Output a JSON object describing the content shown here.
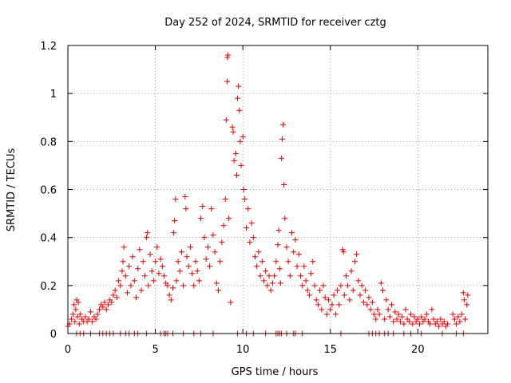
{
  "chart_data": {
    "type": "scatter",
    "title": "Day 252 of 2024, SRMTID for receiver cztg",
    "xlabel": "GPS time / hours",
    "ylabel": "SRMTID / TECUs",
    "xlim": [
      0,
      24
    ],
    "ylim": [
      0,
      1.2
    ],
    "xticks": [
      0,
      5,
      10,
      15,
      20
    ],
    "xtick_labels": [
      "0",
      "5",
      "10",
      "15",
      "20"
    ],
    "yticks": [
      0,
      0.2,
      0.4,
      0.6,
      0.8,
      1.0,
      1.2
    ],
    "ytick_labels": [
      "0",
      "0.2",
      "0.4",
      "0.6",
      "0.8",
      "1",
      "1.2"
    ],
    "grid": true,
    "marker": "+",
    "color": "#e00000",
    "series": [
      {
        "name": "SRMTID",
        "points": [
          [
            0.0,
            0.03
          ],
          [
            0.1,
            0.04
          ],
          [
            0.2,
            0.06
          ],
          [
            0.3,
            0.08
          ],
          [
            0.35,
            0.12
          ],
          [
            0.4,
            0.05
          ],
          [
            0.45,
            0.1
          ],
          [
            0.5,
            0.14
          ],
          [
            0.55,
            0.07
          ],
          [
            0.6,
            0.13
          ],
          [
            0.65,
            0.04
          ],
          [
            0.7,
            0.08
          ],
          [
            0.8,
            0.06
          ],
          [
            0.9,
            0.05
          ],
          [
            1.0,
            0.07
          ],
          [
            1.1,
            0.05
          ],
          [
            1.2,
            0.06
          ],
          [
            1.3,
            0.09
          ],
          [
            1.4,
            0.05
          ],
          [
            1.5,
            0.07
          ],
          [
            1.6,
            0.06
          ],
          [
            1.7,
            0.08
          ],
          [
            1.8,
            0.1
          ],
          [
            1.9,
            0.12
          ],
          [
            2.0,
            0.11
          ],
          [
            2.1,
            0.13
          ],
          [
            2.2,
            0.1
          ],
          [
            2.3,
            0.12
          ],
          [
            2.4,
            0.14
          ],
          [
            2.5,
            0.13
          ],
          [
            2.6,
            0.16
          ],
          [
            2.7,
            0.18
          ],
          [
            2.8,
            0.15
          ],
          [
            2.9,
            0.22
          ],
          [
            3.0,
            0.2
          ],
          [
            3.1,
            0.26
          ],
          [
            3.15,
            0.3
          ],
          [
            3.2,
            0.36
          ],
          [
            3.3,
            0.24
          ],
          [
            3.4,
            0.17
          ],
          [
            3.5,
            0.28
          ],
          [
            3.6,
            0.2
          ],
          [
            3.7,
            0.32
          ],
          [
            3.8,
            0.22
          ],
          [
            3.9,
            0.15
          ],
          [
            4.0,
            0.27
          ],
          [
            4.1,
            0.35
          ],
          [
            4.2,
            0.18
          ],
          [
            4.3,
            0.3
          ],
          [
            4.4,
            0.24
          ],
          [
            4.5,
            0.4
          ],
          [
            4.55,
            0.42
          ],
          [
            4.6,
            0.2
          ],
          [
            4.7,
            0.33
          ],
          [
            4.8,
            0.26
          ],
          [
            4.9,
            0.22
          ],
          [
            5.0,
            0.3
          ],
          [
            5.1,
            0.36
          ],
          [
            5.2,
            0.25
          ],
          [
            5.3,
            0.31
          ],
          [
            5.4,
            0.28
          ],
          [
            5.5,
            0.24
          ],
          [
            5.6,
            0.21
          ],
          [
            5.7,
            0.2
          ],
          [
            5.8,
            0.16
          ],
          [
            5.9,
            0.14
          ],
          [
            6.0,
            0.19
          ],
          [
            6.05,
            0.42
          ],
          [
            6.1,
            0.47
          ],
          [
            6.15,
            0.56
          ],
          [
            6.2,
            0.22
          ],
          [
            6.3,
            0.3
          ],
          [
            6.4,
            0.26
          ],
          [
            6.5,
            0.34
          ],
          [
            6.6,
            0.2
          ],
          [
            6.7,
            0.57
          ],
          [
            6.75,
            0.52
          ],
          [
            6.8,
            0.32
          ],
          [
            6.9,
            0.28
          ],
          [
            7.0,
            0.36
          ],
          [
            7.1,
            0.25
          ],
          [
            7.2,
            0.2
          ],
          [
            7.3,
            0.3
          ],
          [
            7.4,
            0.26
          ],
          [
            7.5,
            0.22
          ],
          [
            7.6,
            0.48
          ],
          [
            7.7,
            0.53
          ],
          [
            7.8,
            0.4
          ],
          [
            7.9,
            0.31
          ],
          [
            8.0,
            0.36
          ],
          [
            8.1,
            0.28
          ],
          [
            8.2,
            0.52
          ],
          [
            8.3,
            0.41
          ],
          [
            8.4,
            0.34
          ],
          [
            8.5,
            0.21
          ],
          [
            8.6,
            0.18
          ],
          [
            8.7,
            0.3
          ],
          [
            8.8,
            0.38
          ],
          [
            8.9,
            0.45
          ],
          [
            9.0,
            0.56
          ],
          [
            9.05,
            0.89
          ],
          [
            9.1,
            1.05
          ],
          [
            9.12,
            1.15
          ],
          [
            9.15,
            1.16
          ],
          [
            9.2,
            0.48
          ],
          [
            9.3,
            0.13
          ],
          [
            9.4,
            0.86
          ],
          [
            9.45,
            0.84
          ],
          [
            9.5,
            0.72
          ],
          [
            9.6,
            0.75
          ],
          [
            9.65,
            0.66
          ],
          [
            9.7,
            0.98
          ],
          [
            9.75,
            1.03
          ],
          [
            9.8,
            0.93
          ],
          [
            9.85,
            0.8
          ],
          [
            9.9,
            0.7
          ],
          [
            10.0,
            0.82
          ],
          [
            10.05,
            0.6
          ],
          [
            10.1,
            0.56
          ],
          [
            10.2,
            0.44
          ],
          [
            10.3,
            0.52
          ],
          [
            10.4,
            0.38
          ],
          [
            10.5,
            0.46
          ],
          [
            10.6,
            0.4
          ],
          [
            10.7,
            0.32
          ],
          [
            10.8,
            0.28
          ],
          [
            10.9,
            0.34
          ],
          [
            11.0,
            0.24
          ],
          [
            11.1,
            0.3
          ],
          [
            11.2,
            0.22
          ],
          [
            11.3,
            0.26
          ],
          [
            11.4,
            0.2
          ],
          [
            11.5,
            0.24
          ],
          [
            11.6,
            0.18
          ],
          [
            11.7,
            0.21
          ],
          [
            11.8,
            0.24
          ],
          [
            11.9,
            0.3
          ],
          [
            12.0,
            0.37
          ],
          [
            12.05,
            0.43
          ],
          [
            12.1,
            0.27
          ],
          [
            12.15,
            0.21
          ],
          [
            12.2,
            0.73
          ],
          [
            12.25,
            0.81
          ],
          [
            12.3,
            0.87
          ],
          [
            12.35,
            0.62
          ],
          [
            12.4,
            0.48
          ],
          [
            12.5,
            0.36
          ],
          [
            12.6,
            0.3
          ],
          [
            12.7,
            0.24
          ],
          [
            12.8,
            0.42
          ],
          [
            12.9,
            0.34
          ],
          [
            13.0,
            0.39
          ],
          [
            13.1,
            0.28
          ],
          [
            13.2,
            0.33
          ],
          [
            13.3,
            0.24
          ],
          [
            13.4,
            0.2
          ],
          [
            13.5,
            0.28
          ],
          [
            13.6,
            0.22
          ],
          [
            13.7,
            0.18
          ],
          [
            13.8,
            0.16
          ],
          [
            13.9,
            0.25
          ],
          [
            14.0,
            0.3
          ],
          [
            14.1,
            0.2
          ],
          [
            14.2,
            0.14
          ],
          [
            14.3,
            0.12
          ],
          [
            14.4,
            0.18
          ],
          [
            14.5,
            0.1
          ],
          [
            14.6,
            0.2
          ],
          [
            14.7,
            0.15
          ],
          [
            14.8,
            0.08
          ],
          [
            14.9,
            0.14
          ],
          [
            15.0,
            0.1
          ],
          [
            15.1,
            0.12
          ],
          [
            15.2,
            0.16
          ],
          [
            15.3,
            0.08
          ],
          [
            15.4,
            0.18
          ],
          [
            15.5,
            0.12
          ],
          [
            15.6,
            0.2
          ],
          [
            15.7,
            0.35
          ],
          [
            15.75,
            0.34
          ],
          [
            15.8,
            0.16
          ],
          [
            15.9,
            0.24
          ],
          [
            16.0,
            0.2
          ],
          [
            16.1,
            0.14
          ],
          [
            16.2,
            0.26
          ],
          [
            16.3,
            0.18
          ],
          [
            16.4,
            0.3
          ],
          [
            16.5,
            0.33
          ],
          [
            16.6,
            0.22
          ],
          [
            16.7,
            0.16
          ],
          [
            16.8,
            0.2
          ],
          [
            16.9,
            0.13
          ],
          [
            17.0,
            0.18
          ],
          [
            17.1,
            0.12
          ],
          [
            17.2,
            0.15
          ],
          [
            17.3,
            0.1
          ],
          [
            17.4,
            0.13
          ],
          [
            17.5,
            0.08
          ],
          [
            17.6,
            0.06
          ],
          [
            17.7,
            0.1
          ],
          [
            17.8,
            0.08
          ],
          [
            17.9,
            0.21
          ],
          [
            18.0,
            0.18
          ],
          [
            18.1,
            0.06
          ],
          [
            18.2,
            0.14
          ],
          [
            18.3,
            0.1
          ],
          [
            18.4,
            0.07
          ],
          [
            18.5,
            0.12
          ],
          [
            18.6,
            0.05
          ],
          [
            18.7,
            0.09
          ],
          [
            18.8,
            0.06
          ],
          [
            18.9,
            0.08
          ],
          [
            19.0,
            0.05
          ],
          [
            19.1,
            0.07
          ],
          [
            19.2,
            0.04
          ],
          [
            19.3,
            0.1
          ],
          [
            19.4,
            0.06
          ],
          [
            19.5,
            0.05
          ],
          [
            19.6,
            0.08
          ],
          [
            19.7,
            0.04
          ],
          [
            19.8,
            0.07
          ],
          [
            19.9,
            0.05
          ],
          [
            20.0,
            0.06
          ],
          [
            20.1,
            0.04
          ],
          [
            20.2,
            0.07
          ],
          [
            20.3,
            0.05
          ],
          [
            20.4,
            0.06
          ],
          [
            20.5,
            0.08
          ],
          [
            20.6,
            0.05
          ],
          [
            20.7,
            0.04
          ],
          [
            20.8,
            0.1
          ],
          [
            20.9,
            0.06
          ],
          [
            21.0,
            0.04
          ],
          [
            21.1,
            0.05
          ],
          [
            21.2,
            0.03
          ],
          [
            21.3,
            0.06
          ],
          [
            21.4,
            0.04
          ],
          [
            21.5,
            0.05
          ],
          [
            21.6,
            0.03
          ],
          [
            21.7,
            0.04
          ],
          [
            22.0,
            0.08
          ],
          [
            22.1,
            0.06
          ],
          [
            22.2,
            0.04
          ],
          [
            22.3,
            0.07
          ],
          [
            22.4,
            0.05
          ],
          [
            22.5,
            0.08
          ],
          [
            22.6,
            0.17
          ],
          [
            22.65,
            0.14
          ],
          [
            22.7,
            0.06
          ],
          [
            22.8,
            0.12
          ],
          [
            22.85,
            0.16
          ]
        ],
        "zero_points": [
          0.5,
          0.7,
          0.9,
          1.3,
          1.8,
          2.0,
          2.2,
          2.4,
          2.6,
          3.0,
          3.3,
          3.5,
          3.8,
          4.0,
          4.5,
          5.3,
          5.5,
          5.6,
          5.7,
          6.0,
          6.6,
          7.2,
          7.6,
          8.3,
          9.7,
          10.2,
          10.6,
          11.3,
          11.9,
          12.0,
          12.1,
          12.2,
          12.5,
          12.9,
          13.0,
          13.4,
          15.6,
          17.2,
          17.4,
          17.6,
          17.8,
          18.1,
          18.3,
          18.6,
          19.2,
          19.6,
          20.2,
          21.4,
          22.2,
          22.6
        ]
      }
    ]
  }
}
